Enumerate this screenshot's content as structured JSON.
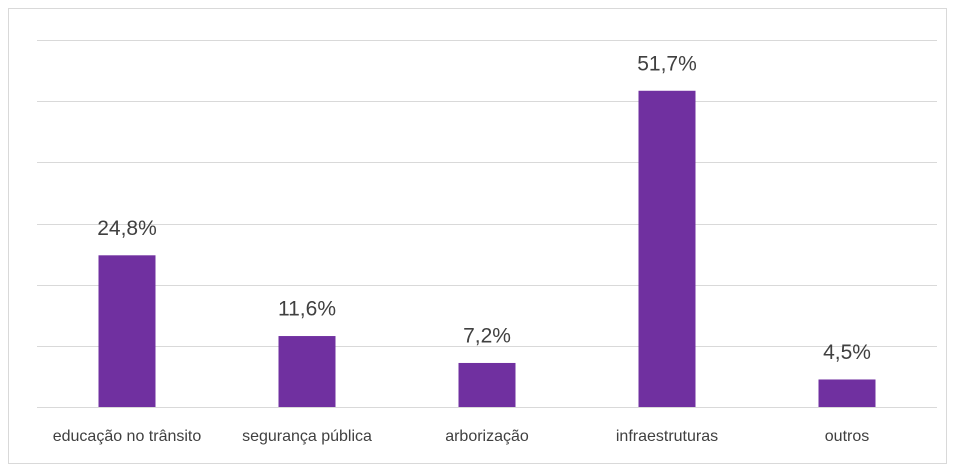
{
  "chart_data": {
    "type": "bar",
    "categories": [
      "educação no trânsito",
      "segurança pública",
      "arborização",
      "infraestruturas",
      "outros"
    ],
    "values": [
      24.8,
      11.6,
      7.2,
      51.7,
      4.5
    ],
    "value_labels": [
      "24,8%",
      "11,6%",
      "7,2%",
      "51,7%",
      "4,5%"
    ],
    "color": "#7030a0",
    "ylim": [
      0,
      60
    ],
    "yticks": [
      0,
      10,
      20,
      30,
      40,
      50,
      60
    ],
    "grid": true
  }
}
